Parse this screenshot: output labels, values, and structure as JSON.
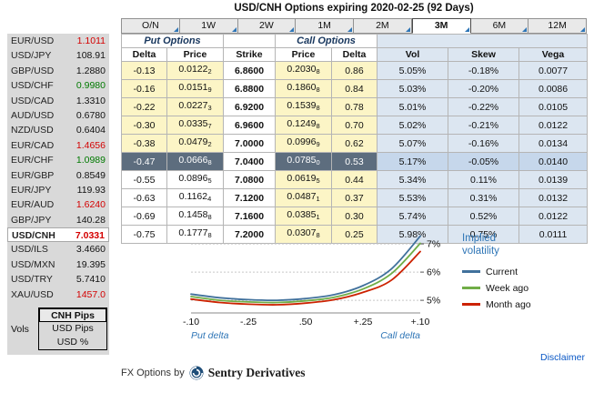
{
  "title": "USD/CNH Options expiring 2020-02-25 (92 Days)",
  "colors": {
    "accent_blue": "#2e75b6",
    "rate_up_green": "#007a00",
    "rate_down_red": "#d40000",
    "atm_cell_bg": "#5d6d7e",
    "otm_cell_bg": "#fcf5c6",
    "vol_section_bg": "#dce6f1"
  },
  "sidebar": {
    "pairs": [
      {
        "name": "EUR/USD",
        "rate": "1.1011",
        "color": "red",
        "selected": false
      },
      {
        "name": "USD/JPY",
        "rate": "108.91",
        "color": "black",
        "selected": false
      },
      {
        "name": "GBP/USD",
        "rate": "1.2880",
        "color": "black",
        "selected": false
      },
      {
        "name": "USD/CHF",
        "rate": "0.9980",
        "color": "green",
        "selected": false
      },
      {
        "name": "USD/CAD",
        "rate": "1.3310",
        "color": "black",
        "selected": false
      },
      {
        "name": "AUD/USD",
        "rate": "0.6780",
        "color": "black",
        "selected": false
      },
      {
        "name": "NZD/USD",
        "rate": "0.6404",
        "color": "black",
        "selected": false
      },
      {
        "name": "EUR/CAD",
        "rate": "1.4656",
        "color": "red",
        "selected": false
      },
      {
        "name": "EUR/CHF",
        "rate": "1.0989",
        "color": "green",
        "selected": false
      },
      {
        "name": "EUR/GBP",
        "rate": "0.8549",
        "color": "black",
        "selected": false
      },
      {
        "name": "EUR/JPY",
        "rate": "119.93",
        "color": "black",
        "selected": false
      },
      {
        "name": "EUR/AUD",
        "rate": "1.6240",
        "color": "red",
        "selected": false
      },
      {
        "name": "GBP/JPY",
        "rate": "140.28",
        "color": "black",
        "selected": false
      },
      {
        "name": "USD/CNH",
        "rate": "7.0331",
        "color": "red",
        "selected": true
      },
      {
        "name": "USD/ILS",
        "rate": "3.4660",
        "color": "black",
        "selected": false
      },
      {
        "name": "USD/MXN",
        "rate": "19.395",
        "color": "black",
        "selected": false
      },
      {
        "name": "USD/TRY",
        "rate": "5.7410",
        "color": "black",
        "selected": false
      },
      {
        "name": "XAU/USD",
        "rate": "1457.0",
        "color": "red",
        "selected": false
      }
    ],
    "vols_label": "Vols",
    "vol_units": [
      {
        "label": "CNH Pips",
        "selected": true
      },
      {
        "label": "USD Pips",
        "selected": false
      },
      {
        "label": "USD %",
        "selected": false
      }
    ]
  },
  "tabs": [
    {
      "label": "O/N",
      "selected": false
    },
    {
      "label": "1W",
      "selected": false
    },
    {
      "label": "2W",
      "selected": false
    },
    {
      "label": "1M",
      "selected": false
    },
    {
      "label": "2M",
      "selected": false
    },
    {
      "label": "3M",
      "selected": true
    },
    {
      "label": "6M",
      "selected": false
    },
    {
      "label": "12M",
      "selected": false
    }
  ],
  "table": {
    "put_header": "Put Options",
    "call_header": "Call Options",
    "columns": [
      "Delta",
      "Price",
      "Strike",
      "Price",
      "Delta",
      "Vol",
      "Skew",
      "Vega"
    ],
    "rows": [
      {
        "put_delta": "-0.13",
        "put_price": "0.0122",
        "put_price_sub": "2",
        "strike": "6.8600",
        "call_price": "0.2030",
        "call_price_sub": "8",
        "call_delta": "0.86",
        "vol": "5.05%",
        "skew": "-0.18%",
        "vega": "0.0077",
        "atm": false
      },
      {
        "put_delta": "-0.16",
        "put_price": "0.0151",
        "put_price_sub": "9",
        "strike": "6.8800",
        "call_price": "0.1860",
        "call_price_sub": "8",
        "call_delta": "0.84",
        "vol": "5.03%",
        "skew": "-0.20%",
        "vega": "0.0086",
        "atm": false
      },
      {
        "put_delta": "-0.22",
        "put_price": "0.0227",
        "put_price_sub": "3",
        "strike": "6.9200",
        "call_price": "0.1539",
        "call_price_sub": "8",
        "call_delta": "0.78",
        "vol": "5.01%",
        "skew": "-0.22%",
        "vega": "0.0105",
        "atm": false
      },
      {
        "put_delta": "-0.30",
        "put_price": "0.0335",
        "put_price_sub": "7",
        "strike": "6.9600",
        "call_price": "0.1249",
        "call_price_sub": "8",
        "call_delta": "0.70",
        "vol": "5.02%",
        "skew": "-0.21%",
        "vega": "0.0122",
        "atm": false
      },
      {
        "put_delta": "-0.38",
        "put_price": "0.0479",
        "put_price_sub": "2",
        "strike": "7.0000",
        "call_price": "0.0996",
        "call_price_sub": "9",
        "call_delta": "0.62",
        "vol": "5.07%",
        "skew": "-0.16%",
        "vega": "0.0134",
        "atm": false
      },
      {
        "put_delta": "-0.47",
        "put_price": "0.0666",
        "put_price_sub": "8",
        "strike": "7.0400",
        "call_price": "0.0785",
        "call_price_sub": "0",
        "call_delta": "0.53",
        "vol": "5.17%",
        "skew": "-0.05%",
        "vega": "0.0140",
        "atm": true
      },
      {
        "put_delta": "-0.55",
        "put_price": "0.0896",
        "put_price_sub": "5",
        "strike": "7.0800",
        "call_price": "0.0619",
        "call_price_sub": "5",
        "call_delta": "0.44",
        "vol": "5.34%",
        "skew": "0.11%",
        "vega": "0.0139",
        "atm": false
      },
      {
        "put_delta": "-0.63",
        "put_price": "0.1162",
        "put_price_sub": "4",
        "strike": "7.1200",
        "call_price": "0.0487",
        "call_price_sub": "1",
        "call_delta": "0.37",
        "vol": "5.53%",
        "skew": "0.31%",
        "vega": "0.0132",
        "atm": false
      },
      {
        "put_delta": "-0.69",
        "put_price": "0.1458",
        "put_price_sub": "8",
        "strike": "7.1600",
        "call_price": "0.0385",
        "call_price_sub": "1",
        "call_delta": "0.30",
        "vol": "5.74%",
        "skew": "0.52%",
        "vega": "0.0122",
        "atm": false
      },
      {
        "put_delta": "-0.75",
        "put_price": "0.1777",
        "put_price_sub": "8",
        "strike": "7.2000",
        "call_price": "0.0307",
        "call_price_sub": "8",
        "call_delta": "0.25",
        "vol": "5.98%",
        "skew": "0.75%",
        "vega": "0.0111",
        "atm": false
      }
    ]
  },
  "chart_data": {
    "type": "line",
    "title": "Implied volatility",
    "xlabel_left": "Put delta",
    "xlabel_right": "Call delta",
    "xtick_labels": [
      "-.10",
      "-.25",
      ".50",
      "+.25",
      "+.10"
    ],
    "ylim": [
      4.55,
      7.65
    ],
    "yticks": [
      {
        "value": 5,
        "label": "5%"
      },
      {
        "value": 6,
        "label": "6%"
      },
      {
        "value": 7,
        "label": "7%"
      }
    ],
    "grid": "dotted-horizontal",
    "legend_position": "right",
    "series": [
      {
        "name": "Current",
        "color": "#41719c",
        "values": [
          5.22,
          5.09,
          5.02,
          5.0,
          5.06,
          5.2,
          5.52,
          6.12,
          7.28
        ]
      },
      {
        "name": "Week ago",
        "color": "#70ad47",
        "values": [
          5.13,
          5.0,
          4.94,
          4.92,
          4.98,
          5.11,
          5.4,
          5.95,
          7.02
        ]
      },
      {
        "name": "Month ago",
        "color": "#cc2200",
        "values": [
          5.04,
          4.92,
          4.86,
          4.84,
          4.9,
          5.02,
          5.28,
          5.72,
          6.73
        ]
      }
    ]
  },
  "footer": {
    "brand_prefix": "FX Options by",
    "brand_name": "Sentry Derivatives",
    "disclaimer": "Disclaimer"
  }
}
